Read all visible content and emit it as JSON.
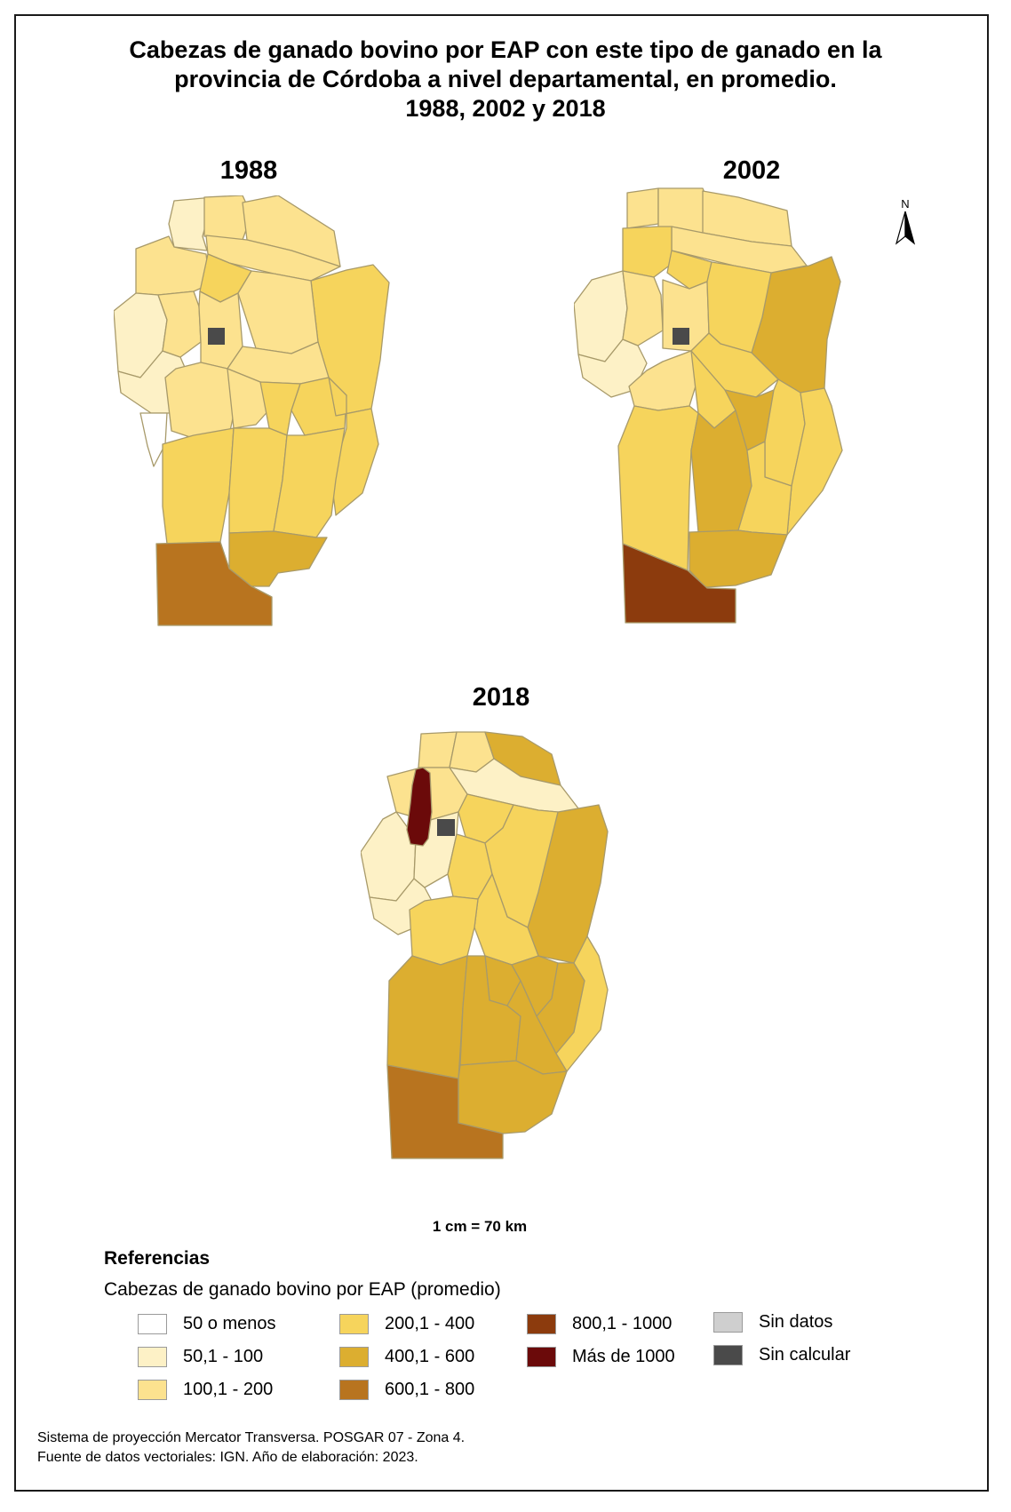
{
  "title": {
    "line1": "Cabezas de ganado bovino por EAP con este tipo de ganado en la",
    "line2": "provincia de Córdoba a nivel departamental, en promedio.",
    "line3": "1988, 2002 y 2018"
  },
  "maps": [
    {
      "year": "1988"
    },
    {
      "year": "2002"
    },
    {
      "year": "2018"
    }
  ],
  "north_arrow": {
    "letter": "N"
  },
  "scale": "1 cm = 70 km",
  "legend": {
    "title": "Referencias",
    "subtitle": "Cabezas de ganado bovino por EAP (promedio)",
    "items": [
      {
        "label": "50 o menos",
        "color": "#ffffff"
      },
      {
        "label": "50,1 - 100",
        "color": "#fdf1c6"
      },
      {
        "label": "100,1 - 200",
        "color": "#fce28f"
      },
      {
        "label": "200,1 -  400",
        "color": "#f6d45c"
      },
      {
        "label": "400,1 - 600",
        "color": "#dcae30"
      },
      {
        "label": "600,1 - 800",
        "color": "#b8741f"
      },
      {
        "label": "800,1 - 1000",
        "color": "#8c3b0d"
      },
      {
        "label": "Más de 1000",
        "color": "#6b0a0a"
      },
      {
        "label": "Sin datos",
        "color": "#cfcfcf"
      },
      {
        "label": "Sin calcular",
        "color": "#4a4a4a"
      }
    ]
  },
  "footer": {
    "line1": "Sistema de proyección Mercator Transversa. POSGAR 07 - Zona 4.",
    "line2": "Fuente de datos vectoriales: IGN. Año de elaboración: 2023."
  },
  "palette": {
    "c0": "#ffffff",
    "c1": "#fdf1c6",
    "c2": "#fce28f",
    "c3": "#f6d45c",
    "c4": "#dcae30",
    "c5": "#b8741f",
    "c6": "#8c3b0d",
    "c7": "#6b0a0a",
    "nodata": "#cfcfcf",
    "nocalc": "#4a4a4a",
    "border": "#a89a6a"
  }
}
